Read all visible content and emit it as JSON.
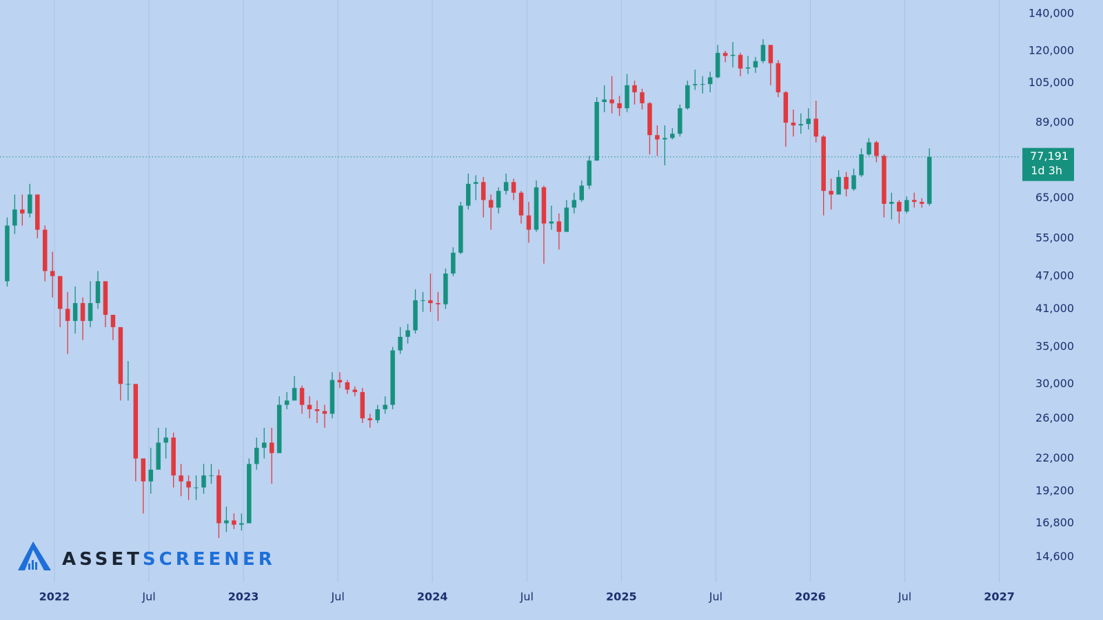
{
  "chart_data": {
    "type": "candlestick",
    "log_scale": true,
    "xgrid": true,
    "up_color": "#17917f",
    "down_color": "#e0393e",
    "x": [
      2021.75,
      2021.79,
      2021.83,
      2021.87,
      2021.91,
      2021.95,
      2021.99,
      2022.03,
      2022.07,
      2022.11,
      2022.15,
      2022.19,
      2022.23,
      2022.27,
      2022.31,
      2022.35,
      2022.39,
      2022.43,
      2022.47,
      2022.51,
      2022.55,
      2022.59,
      2022.63,
      2022.67,
      2022.71,
      2022.75,
      2022.79,
      2022.83,
      2022.87,
      2022.91,
      2022.95,
      2022.99,
      2023.03,
      2023.07,
      2023.11,
      2023.15,
      2023.19,
      2023.23,
      2023.27,
      2023.31,
      2023.35,
      2023.39,
      2023.43,
      2023.47,
      2023.51,
      2023.55,
      2023.59,
      2023.63,
      2023.67,
      2023.71,
      2023.75,
      2023.79,
      2023.83,
      2023.87,
      2023.91,
      2023.95,
      2023.99,
      2024.03,
      2024.07,
      2024.11,
      2024.15,
      2024.19,
      2024.23,
      2024.27,
      2024.31,
      2024.35,
      2024.39,
      2024.43,
      2024.47,
      2024.51,
      2024.55,
      2024.59,
      2024.63,
      2024.67,
      2024.71,
      2024.75,
      2024.79,
      2024.83,
      2024.87,
      2024.91,
      2024.95,
      2024.99,
      2025.03,
      2025.07,
      2025.11,
      2025.15,
      2025.19,
      2025.23,
      2025.27,
      2025.31,
      2025.35,
      2025.39,
      2025.43,
      2025.47,
      2025.51,
      2025.55,
      2025.59,
      2025.63,
      2025.67,
      2025.71,
      2025.75,
      2025.79,
      2025.83,
      2025.87,
      2025.91,
      2025.95,
      2025.99,
      2026.03,
      2026.07,
      2026.11,
      2026.15,
      2026.19,
      2026.23,
      2026.27,
      2026.31,
      2026.35,
      2026.39,
      2026.43,
      2026.47,
      2026.51,
      2026.55,
      2026.59,
      2026.63
    ],
    "open": [
      46000,
      58000,
      62000,
      61000,
      66000,
      57000,
      48000,
      47000,
      41000,
      39000,
      42000,
      39000,
      42000,
      46000,
      40000,
      38000,
      30000,
      30000,
      22000,
      20000,
      21000,
      23500,
      24000,
      20500,
      20000,
      19500,
      19500,
      20500,
      20500,
      16800,
      17000,
      16700,
      16800,
      21500,
      23000,
      23500,
      22500,
      27500,
      28000,
      29500,
      27500,
      27000,
      26800,
      26500,
      30500,
      30200,
      29300,
      29000,
      26000,
      25800,
      27000,
      27500,
      34500,
      36500,
      37500,
      42500,
      42500,
      42000,
      41800,
      47500,
      51800,
      63000,
      69000,
      69500,
      64500,
      62500,
      67000,
      69500,
      66500,
      60500,
      57000,
      68000,
      58500,
      59000,
      56500,
      62500,
      64500,
      68500,
      76000,
      97000,
      98000,
      96500,
      94500,
      104000,
      101000,
      96500,
      84500,
      83000,
      83500,
      85000,
      94500,
      104000,
      104500,
      104500,
      107500,
      119000,
      117500,
      118000,
      111500,
      112000,
      115000,
      123000,
      114000,
      101000,
      89000,
      88000,
      88500,
      90500,
      84000,
      67000,
      66000,
      71000,
      67500,
      71500,
      78000,
      82000,
      77500,
      63500,
      64000,
      61500,
      64500,
      64000,
      63500
    ],
    "high": [
      60000,
      66000,
      66000,
      69000,
      66000,
      58000,
      52000,
      47000,
      44000,
      45000,
      43000,
      46000,
      48000,
      46000,
      40000,
      38000,
      33000,
      30000,
      22000,
      23000,
      25000,
      25000,
      24500,
      21500,
      20500,
      20500,
      21500,
      21500,
      21000,
      18000,
      17500,
      17500,
      22000,
      24000,
      25000,
      25000,
      28500,
      29000,
      31000,
      29800,
      28500,
      28000,
      27500,
      31500,
      31500,
      30500,
      29700,
      29500,
      26500,
      27500,
      28500,
      35000,
      38000,
      38500,
      44500,
      44000,
      47500,
      44000,
      48500,
      53000,
      64000,
      72000,
      71500,
      71000,
      66000,
      68000,
      72000,
      70500,
      67000,
      64000,
      70000,
      68500,
      63000,
      61000,
      64500,
      66500,
      70000,
      77500,
      99000,
      104000,
      108000,
      99500,
      109000,
      106000,
      102500,
      97000,
      88000,
      88000,
      87000,
      96000,
      106000,
      111000,
      108000,
      110000,
      123000,
      120000,
      124500,
      119000,
      117500,
      117000,
      126000,
      123000,
      115500,
      101500,
      94000,
      92500,
      94500,
      97500,
      84500,
      70500,
      73000,
      72500,
      73500,
      80000,
      83500,
      82500,
      78000,
      66500,
      64500,
      65500,
      66500,
      65000,
      80000
    ],
    "low": [
      45000,
      56000,
      58000,
      60000,
      55000,
      46000,
      43000,
      38000,
      34000,
      37000,
      36000,
      38000,
      41000,
      38000,
      36000,
      28000,
      28000,
      20000,
      17500,
      19000,
      21000,
      22000,
      19500,
      18800,
      18500,
      18500,
      19000,
      19800,
      15800,
      16200,
      16400,
      16300,
      16800,
      21000,
      22000,
      19800,
      22500,
      27000,
      28000,
      26500,
      26000,
      25500,
      25000,
      26000,
      29500,
      28800,
      28500,
      25500,
      25000,
      25500,
      26500,
      27000,
      34000,
      35500,
      37000,
      40500,
      40500,
      39000,
      41000,
      47000,
      51500,
      62000,
      64500,
      60000,
      57000,
      61000,
      66000,
      64500,
      58500,
      54000,
      56500,
      49500,
      57000,
      52500,
      56500,
      61000,
      64000,
      67500,
      76000,
      93000,
      92500,
      91500,
      93000,
      96000,
      94000,
      78000,
      77500,
      74500,
      83000,
      84000,
      94000,
      102000,
      100500,
      101000,
      107000,
      114500,
      112000,
      108000,
      109000,
      109500,
      114000,
      104000,
      99000,
      80500,
      84000,
      85000,
      86500,
      82000,
      60500,
      62000,
      66000,
      65500,
      67000,
      71000,
      77500,
      75500,
      60000,
      59500,
      58500,
      61000,
      62500,
      62500,
      63000
    ],
    "close": [
      58000,
      62000,
      61000,
      66000,
      57000,
      48000,
      47000,
      41000,
      39000,
      42000,
      39000,
      42000,
      46000,
      40000,
      38000,
      30000,
      30000,
      22000,
      20000,
      21000,
      23500,
      24000,
      20500,
      20000,
      19500,
      19500,
      20500,
      20500,
      16800,
      17000,
      16700,
      16800,
      21500,
      23000,
      23500,
      22500,
      27500,
      28000,
      29500,
      27500,
      27000,
      26800,
      26500,
      30500,
      30200,
      29300,
      29000,
      26000,
      25800,
      27000,
      27500,
      34500,
      36500,
      37500,
      42500,
      42500,
      42000,
      41800,
      47500,
      51800,
      63000,
      69000,
      69500,
      64500,
      62500,
      67000,
      69500,
      66500,
      60500,
      57000,
      68000,
      58500,
      59000,
      56500,
      62500,
      64500,
      68500,
      76000,
      97000,
      98000,
      96500,
      94500,
      104000,
      101000,
      96500,
      84500,
      83000,
      83500,
      85000,
      94500,
      104000,
      104500,
      104500,
      107500,
      119000,
      117500,
      118000,
      111500,
      112000,
      115000,
      123000,
      114000,
      101000,
      89000,
      88000,
      88500,
      90500,
      84000,
      67000,
      66000,
      71000,
      67500,
      71500,
      78000,
      82000,
      77500,
      63500,
      64000,
      61500,
      64500,
      64000,
      63500,
      77191
    ],
    "last_price": {
      "value": 77191,
      "label": "77,191"
    },
    "countdown": "1d 3h",
    "xlim": [
      2021.712,
      2027.111
    ],
    "xticks": [
      2022,
      {
        "value": 2022.5,
        "label": "Jul"
      },
      2023,
      {
        "value": 2023.5,
        "label": "Jul"
      },
      2024,
      {
        "value": 2024.5,
        "label": "Jul"
      },
      2025,
      {
        "value": 2025.5,
        "label": "Jul"
      },
      2026,
      {
        "value": 2026.5,
        "label": "Jul"
      },
      2027
    ],
    "ylim": [
      13150,
      148300
    ],
    "yticks": [
      {
        "value": 140000,
        "label": "140,000"
      },
      {
        "value": 120000,
        "label": "120,000"
      },
      {
        "value": 105000,
        "label": "105,000"
      },
      {
        "value": 89000,
        "label": "89,000"
      },
      {
        "value": 65000,
        "label": "65,000"
      },
      {
        "value": 55000,
        "label": "55,000"
      },
      {
        "value": 47000,
        "label": "47,000"
      },
      {
        "value": 41000,
        "label": "41,000"
      },
      {
        "value": 35000,
        "label": "35,000"
      },
      {
        "value": 30000,
        "label": "30,000"
      },
      {
        "value": 26000,
        "label": "26,000"
      },
      {
        "value": 22000,
        "label": "22,000"
      },
      {
        "value": 19200,
        "label": "19,200"
      },
      {
        "value": 16800,
        "label": "16,800"
      },
      {
        "value": 14600,
        "label": "14,600"
      }
    ]
  },
  "logo": {
    "part1": "ASSET",
    "part2": "SCREENER"
  }
}
